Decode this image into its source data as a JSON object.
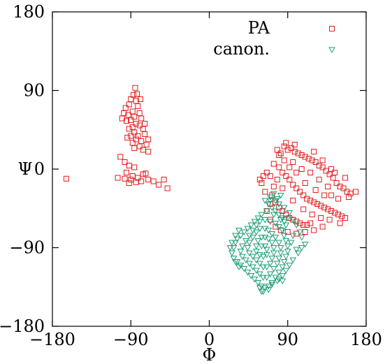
{
  "chart_data": {
    "type": "scatter",
    "title": "",
    "xlabel": "Φ",
    "ylabel": "Ψ",
    "xlim": [
      -180,
      180
    ],
    "ylim": [
      -180,
      180
    ],
    "xticks": [
      -180,
      -90,
      0,
      90,
      180
    ],
    "yticks": [
      -180,
      -90,
      0,
      90,
      180
    ],
    "xtick_labels": [
      "−180",
      "−90",
      "0",
      "90",
      "180"
    ],
    "ytick_labels": [
      "−180",
      "−90",
      "0",
      "90",
      "180"
    ],
    "grid": false,
    "legend_position": "top-right",
    "series": [
      {
        "name": "PA",
        "marker": "open-square",
        "color": "#e41a1c",
        "points": [
          [
            -85,
            93
          ],
          [
            -87,
            85
          ],
          [
            -90,
            80
          ],
          [
            -84,
            78
          ],
          [
            -92,
            74
          ],
          [
            -96,
            70
          ],
          [
            -82,
            72
          ],
          [
            -88,
            66
          ],
          [
            -93,
            62
          ],
          [
            -80,
            64
          ],
          [
            -86,
            60
          ],
          [
            -90,
            56
          ],
          [
            -78,
            58
          ],
          [
            -95,
            55
          ],
          [
            -84,
            52
          ],
          [
            -88,
            48
          ],
          [
            -80,
            50
          ],
          [
            -92,
            46
          ],
          [
            -76,
            46
          ],
          [
            -86,
            42
          ],
          [
            -82,
            38
          ],
          [
            -90,
            38
          ],
          [
            -74,
            40
          ],
          [
            -84,
            34
          ],
          [
            -78,
            32
          ],
          [
            -88,
            30
          ],
          [
            -80,
            26
          ],
          [
            -72,
            28
          ],
          [
            -76,
            22
          ],
          [
            -86,
            24
          ],
          [
            -70,
            34
          ],
          [
            -98,
            64
          ],
          [
            -100,
            58
          ],
          [
            -79,
            80
          ],
          [
            -83,
            86
          ],
          [
            -70,
            20
          ],
          [
            -74,
            52
          ],
          [
            -94,
            36
          ],
          [
            -102,
            14
          ],
          [
            -97,
            8
          ],
          [
            -92,
            4
          ],
          [
            -86,
            2
          ],
          [
            -95,
            -4
          ],
          [
            -88,
            -8
          ],
          [
            -82,
            -10
          ],
          [
            -76,
            -6
          ],
          [
            -70,
            -12
          ],
          [
            -64,
            -14
          ],
          [
            -58,
            -18
          ],
          [
            -52,
            -12
          ],
          [
            -48,
            -22
          ],
          [
            -90,
            -12
          ],
          [
            -84,
            -15
          ],
          [
            -92,
            -16
          ],
          [
            -78,
            -14
          ],
          [
            -105,
            -10
          ],
          [
            -97,
            -11
          ],
          [
            -73,
            -5
          ],
          [
            -164,
            -11
          ],
          [
            70,
            -8
          ],
          [
            74,
            6
          ],
          [
            78,
            22
          ],
          [
            82,
            18
          ],
          [
            86,
            26
          ],
          [
            90,
            22
          ],
          [
            94,
            24
          ],
          [
            98,
            20
          ],
          [
            102,
            18
          ],
          [
            106,
            16
          ],
          [
            110,
            14
          ],
          [
            114,
            12
          ],
          [
            118,
            10
          ],
          [
            122,
            8
          ],
          [
            126,
            4
          ],
          [
            130,
            2
          ],
          [
            134,
            -2
          ],
          [
            138,
            -6
          ],
          [
            142,
            -10
          ],
          [
            146,
            -16
          ],
          [
            150,
            -20
          ],
          [
            154,
            -22
          ],
          [
            158,
            -26
          ],
          [
            162,
            -28
          ],
          [
            168,
            -26
          ],
          [
            80,
            2
          ],
          [
            84,
            -4
          ],
          [
            88,
            -8
          ],
          [
            92,
            -12
          ],
          [
            96,
            -18
          ],
          [
            100,
            -22
          ],
          [
            104,
            -26
          ],
          [
            108,
            -30
          ],
          [
            112,
            -34
          ],
          [
            116,
            -36
          ],
          [
            120,
            -38
          ],
          [
            124,
            -40
          ],
          [
            128,
            -42
          ],
          [
            132,
            -44
          ],
          [
            136,
            -46
          ],
          [
            140,
            -48
          ],
          [
            144,
            -50
          ],
          [
            148,
            -52
          ],
          [
            152,
            -54
          ],
          [
            156,
            -56
          ],
          [
            74,
            -20
          ],
          [
            72,
            -30
          ],
          [
            76,
            -38
          ],
          [
            80,
            -44
          ],
          [
            84,
            -48
          ],
          [
            88,
            -52
          ],
          [
            92,
            -56
          ],
          [
            96,
            -58
          ],
          [
            100,
            -60
          ],
          [
            104,
            -62
          ],
          [
            108,
            -64
          ],
          [
            112,
            -64
          ],
          [
            116,
            -62
          ],
          [
            78,
            -12
          ],
          [
            86,
            10
          ],
          [
            96,
            8
          ],
          [
            106,
            0
          ],
          [
            116,
            -4
          ],
          [
            126,
            -12
          ],
          [
            136,
            -20
          ],
          [
            110,
            -16
          ],
          [
            122,
            -24
          ],
          [
            132,
            -30
          ],
          [
            100,
            -4
          ],
          [
            92,
            2
          ],
          [
            84,
            -22
          ],
          [
            96,
            -36
          ],
          [
            108,
            -46
          ],
          [
            118,
            -52
          ],
          [
            128,
            -56
          ],
          [
            138,
            -58
          ],
          [
            150,
            -62
          ],
          [
            140,
            -30
          ],
          [
            148,
            -34
          ],
          [
            160,
            -32
          ],
          [
            70,
            -40
          ],
          [
            66,
            -48
          ],
          [
            70,
            -58
          ],
          [
            76,
            -66
          ],
          [
            82,
            -70
          ],
          [
            90,
            -72
          ],
          [
            100,
            -74
          ],
          [
            110,
            -72
          ],
          [
            120,
            -70
          ],
          [
            130,
            -66
          ],
          [
            60,
            -16
          ],
          [
            64,
            -26
          ],
          [
            98,
            28
          ],
          [
            88,
            30
          ],
          [
            80,
            16
          ],
          [
            120,
            20
          ],
          [
            130,
            10
          ],
          [
            140,
            0
          ],
          [
            144,
            -4
          ],
          [
            156,
            -10
          ],
          [
            66,
            -4
          ],
          [
            62,
            -8
          ],
          [
            58,
            -12
          ]
        ]
      },
      {
        "name": "canon.",
        "marker": "open-triangle-down",
        "color": "#1b9e77",
        "points": [
          [
            64,
            -36
          ],
          [
            68,
            -40
          ],
          [
            72,
            -44
          ],
          [
            76,
            -48
          ],
          [
            80,
            -52
          ],
          [
            84,
            -56
          ],
          [
            86,
            -60
          ],
          [
            88,
            -64
          ],
          [
            82,
            -58
          ],
          [
            74,
            -52
          ],
          [
            66,
            -48
          ],
          [
            60,
            -52
          ],
          [
            56,
            -56
          ],
          [
            52,
            -60
          ],
          [
            48,
            -64
          ],
          [
            44,
            -68
          ],
          [
            40,
            -72
          ],
          [
            36,
            -76
          ],
          [
            32,
            -80
          ],
          [
            30,
            -84
          ],
          [
            28,
            -90
          ],
          [
            26,
            -96
          ],
          [
            28,
            -102
          ],
          [
            32,
            -106
          ],
          [
            36,
            -110
          ],
          [
            40,
            -114
          ],
          [
            44,
            -118
          ],
          [
            48,
            -122
          ],
          [
            52,
            -126
          ],
          [
            56,
            -130
          ],
          [
            60,
            -134
          ],
          [
            64,
            -136
          ],
          [
            68,
            -134
          ],
          [
            72,
            -130
          ],
          [
            76,
            -124
          ],
          [
            80,
            -118
          ],
          [
            84,
            -112
          ],
          [
            86,
            -106
          ],
          [
            88,
            -100
          ],
          [
            90,
            -94
          ],
          [
            90,
            -88
          ],
          [
            88,
            -82
          ],
          [
            86,
            -76
          ],
          [
            84,
            -70
          ],
          [
            80,
            -66
          ],
          [
            76,
            -62
          ],
          [
            70,
            -60
          ],
          [
            64,
            -58
          ],
          [
            58,
            -60
          ],
          [
            54,
            -64
          ],
          [
            50,
            -70
          ],
          [
            46,
            -76
          ],
          [
            42,
            -82
          ],
          [
            38,
            -88
          ],
          [
            36,
            -94
          ],
          [
            38,
            -100
          ],
          [
            42,
            -104
          ],
          [
            46,
            -108
          ],
          [
            50,
            -112
          ],
          [
            54,
            -116
          ],
          [
            58,
            -120
          ],
          [
            62,
            -124
          ],
          [
            66,
            -124
          ],
          [
            70,
            -120
          ],
          [
            74,
            -114
          ],
          [
            78,
            -108
          ],
          [
            80,
            -102
          ],
          [
            82,
            -96
          ],
          [
            82,
            -90
          ],
          [
            80,
            -84
          ],
          [
            76,
            -78
          ],
          [
            72,
            -74
          ],
          [
            68,
            -70
          ],
          [
            64,
            -68
          ],
          [
            58,
            -68
          ],
          [
            54,
            -72
          ],
          [
            50,
            -78
          ],
          [
            46,
            -84
          ],
          [
            44,
            -90
          ],
          [
            46,
            -96
          ],
          [
            50,
            -100
          ],
          [
            54,
            -104
          ],
          [
            58,
            -108
          ],
          [
            62,
            -112
          ],
          [
            66,
            -112
          ],
          [
            70,
            -108
          ],
          [
            72,
            -102
          ],
          [
            74,
            -96
          ],
          [
            74,
            -90
          ],
          [
            72,
            -84
          ],
          [
            68,
            -80
          ],
          [
            64,
            -78
          ],
          [
            60,
            -78
          ],
          [
            56,
            -82
          ],
          [
            54,
            -88
          ],
          [
            54,
            -94
          ],
          [
            58,
            -98
          ],
          [
            62,
            -100
          ],
          [
            66,
            -98
          ],
          [
            66,
            -92
          ],
          [
            64,
            -88
          ],
          [
            60,
            -88
          ],
          [
            78,
            -34
          ],
          [
            82,
            -30
          ],
          [
            74,
            -28
          ],
          [
            70,
            -32
          ],
          [
            86,
            -44
          ],
          [
            92,
            -50
          ],
          [
            96,
            -58
          ],
          [
            100,
            -64
          ],
          [
            104,
            -72
          ],
          [
            106,
            -78
          ],
          [
            110,
            -86
          ],
          [
            106,
            -90
          ],
          [
            102,
            -96
          ],
          [
            96,
            -104
          ],
          [
            92,
            -110
          ],
          [
            88,
            -116
          ],
          [
            84,
            -122
          ],
          [
            78,
            -128
          ],
          [
            72,
            -132
          ],
          [
            34,
            -70
          ],
          [
            30,
            -76
          ],
          [
            26,
            -84
          ],
          [
            24,
            -90
          ],
          [
            100,
            -92
          ],
          [
            34,
            -112
          ],
          [
            30,
            -106
          ],
          [
            60,
            -140
          ],
          [
            68,
            -138
          ],
          [
            58,
            -136
          ],
          [
            62,
            -140
          ],
          [
            80,
            -126
          ],
          [
            84,
            -128
          ],
          [
            94,
            -84
          ],
          [
            96,
            -76
          ],
          [
            76,
            -36
          ],
          [
            70,
            -36
          ],
          [
            80,
            -40
          ],
          [
            90,
            -56
          ]
        ]
      }
    ]
  }
}
